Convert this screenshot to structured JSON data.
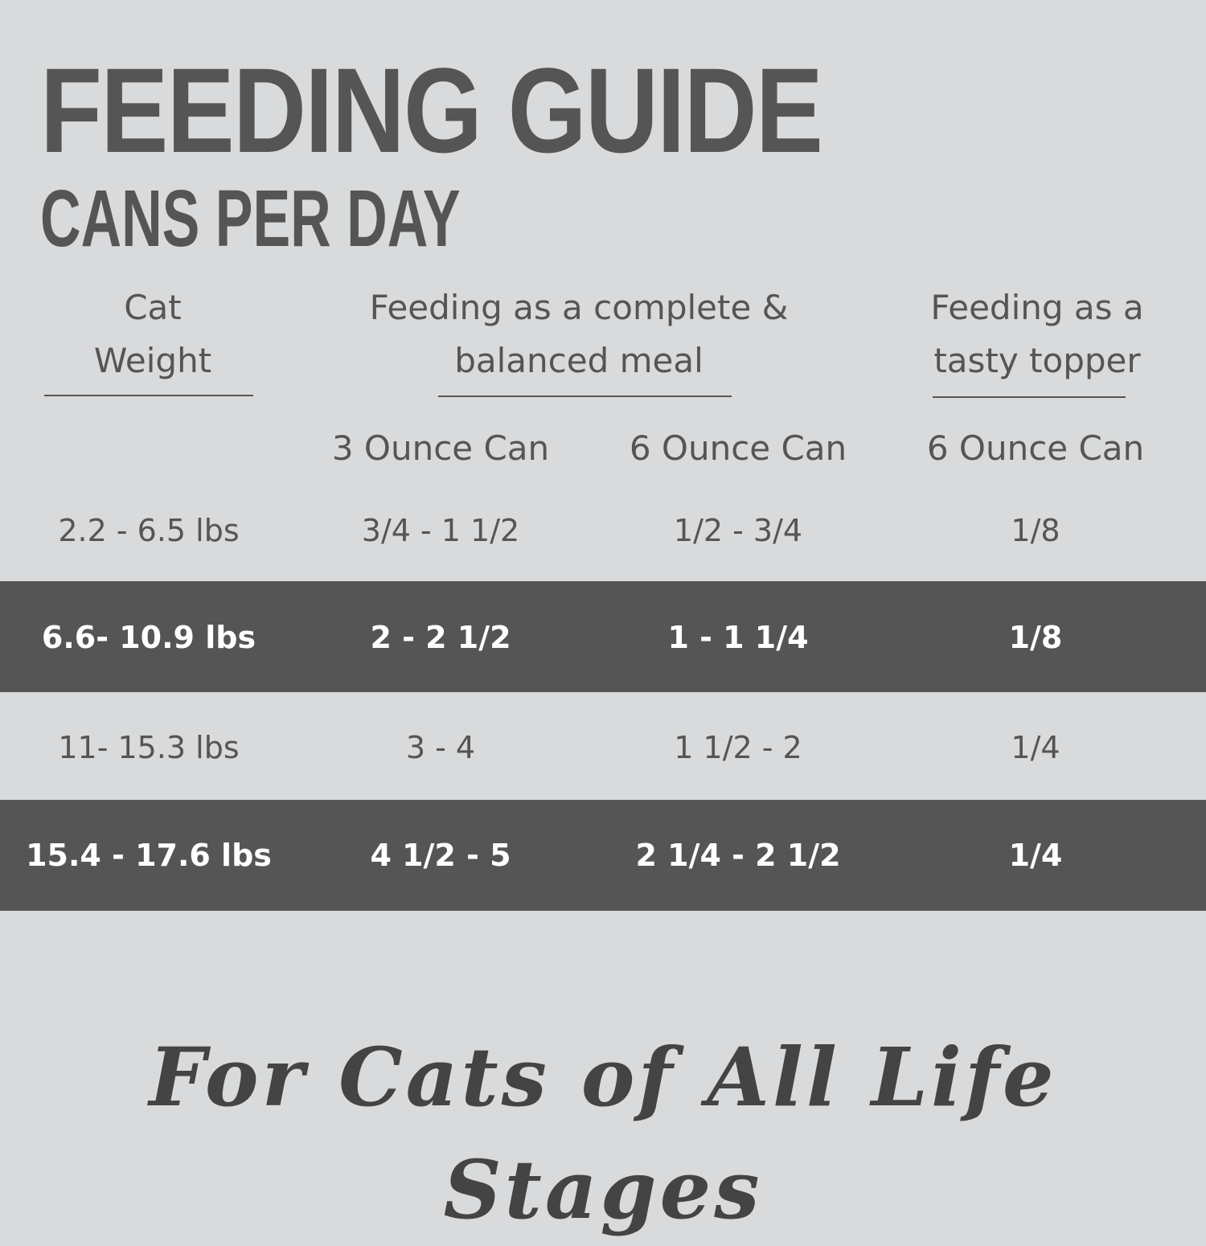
{
  "header": {
    "title": "FEEDING GUIDE",
    "subtitle": "CANS PER DAY"
  },
  "table": {
    "group_headers": [
      "Cat Weight",
      "Feeding as a complete & balanced meal",
      "Feeding as a tasty topper"
    ],
    "sub_headers": [
      "3 Ounce Can",
      "6 Ounce Can",
      "6 Ounce Can"
    ],
    "rows": [
      [
        "2.2 - 6.5 lbs",
        "3/4 - 1 1/2",
        "1/2 - 3/4",
        "1/8"
      ],
      [
        "6.6- 10.9 lbs",
        "2 - 2 1/2",
        "1 - 1 1/4",
        "1/8"
      ],
      [
        "11- 15.3 lbs",
        "3 - 4",
        "1 1/2 - 2",
        "1/4"
      ],
      [
        "15.4 - 17.6 lbs",
        "4 1/2 - 5",
        "2 1/4 - 2 1/2",
        "1/4"
      ]
    ]
  },
  "footer": {
    "tagline": "For Cats of All Life Stages"
  }
}
